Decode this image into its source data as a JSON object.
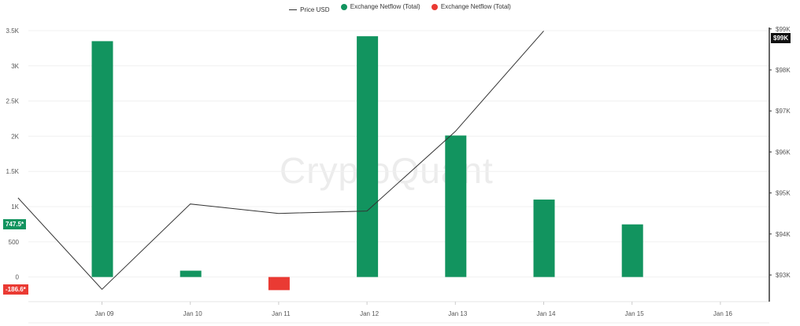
{
  "legend": {
    "price_label": "Price USD",
    "netflow_pos_label": "Exchange Netflow (Total)",
    "netflow_neg_label": "Exchange Netflow (Total)"
  },
  "watermark": "CryptoQuant",
  "badges": {
    "netflow_current": "747.5*",
    "netflow_min": "-186.6*",
    "price_current": "$99K"
  },
  "colors": {
    "positive": "#12945f",
    "negative": "#ea3a33",
    "price_line": "#333333",
    "price_badge": "#111111"
  },
  "chart_data": {
    "type": "bar",
    "categories": [
      "Jan 09",
      "Jan 10",
      "Jan 11",
      "Jan 12",
      "Jan 13",
      "Jan 14",
      "Jan 15",
      "Jan 16"
    ],
    "series": [
      {
        "name": "Exchange Netflow (Total)",
        "axis": "left",
        "type": "bar",
        "values": [
          3350,
          90,
          -186.6,
          3420,
          2010,
          1100,
          747.5,
          null
        ]
      },
      {
        "name": "Price USD",
        "axis": "right",
        "type": "line",
        "x": [
          8.05,
          9.0,
          10.0,
          11.0,
          12.0,
          13.0,
          14.0,
          15.0
        ],
        "values": [
          94880,
          92650,
          94730,
          94500,
          94560,
          96500,
          98950,
          null
        ]
      }
    ],
    "y_left": {
      "ticks": [
        0,
        500,
        1000,
        1500,
        2000,
        2500,
        3000,
        3500
      ],
      "tick_labels": [
        "0",
        "500",
        "1K",
        "1.5K",
        "2K",
        "2.5K",
        "3K",
        "3.5K"
      ],
      "range": [
        -350,
        3600
      ]
    },
    "y_right": {
      "ticks": [
        93000,
        94000,
        95000,
        96000,
        97000,
        98000,
        99000
      ],
      "tick_labels": [
        "$93K",
        "$94K",
        "$95K",
        "$96K",
        "$97K",
        "$98K",
        "$99K"
      ],
      "range": [
        92350,
        99130
      ]
    },
    "grid": true,
    "legend_position": "top-center"
  }
}
